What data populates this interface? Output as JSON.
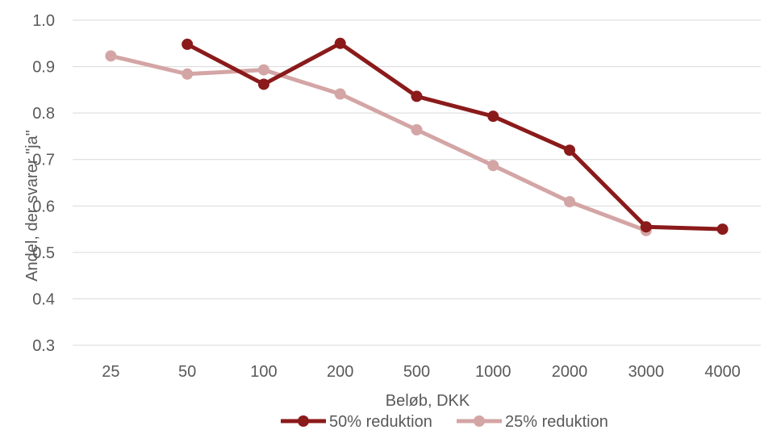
{
  "chart_data": {
    "type": "line",
    "categories": [
      "25",
      "50",
      "100",
      "200",
      "500",
      "1000",
      "2000",
      "3000",
      "4000"
    ],
    "series": [
      {
        "name": "50% reduktion",
        "color": "#8b1a1a",
        "values": [
          null,
          0.948,
          0.862,
          0.95,
          0.836,
          0.793,
          0.72,
          0.555,
          0.55
        ]
      },
      {
        "name": "25% reduktion",
        "color": "#d4a5a5",
        "values": [
          0.923,
          0.884,
          0.893,
          0.841,
          0.764,
          0.687,
          0.609,
          0.547,
          null
        ]
      }
    ],
    "xlabel": "Beløb, DKK",
    "ylabel": "Andel, der svarer \"ja\"",
    "ylim": [
      0.3,
      1.0
    ],
    "yticks": [
      "0.3",
      "0.4",
      "0.5",
      "0.6",
      "0.7",
      "0.8",
      "0.9",
      "1.0"
    ],
    "grid": true,
    "legend_position": "bottom"
  }
}
